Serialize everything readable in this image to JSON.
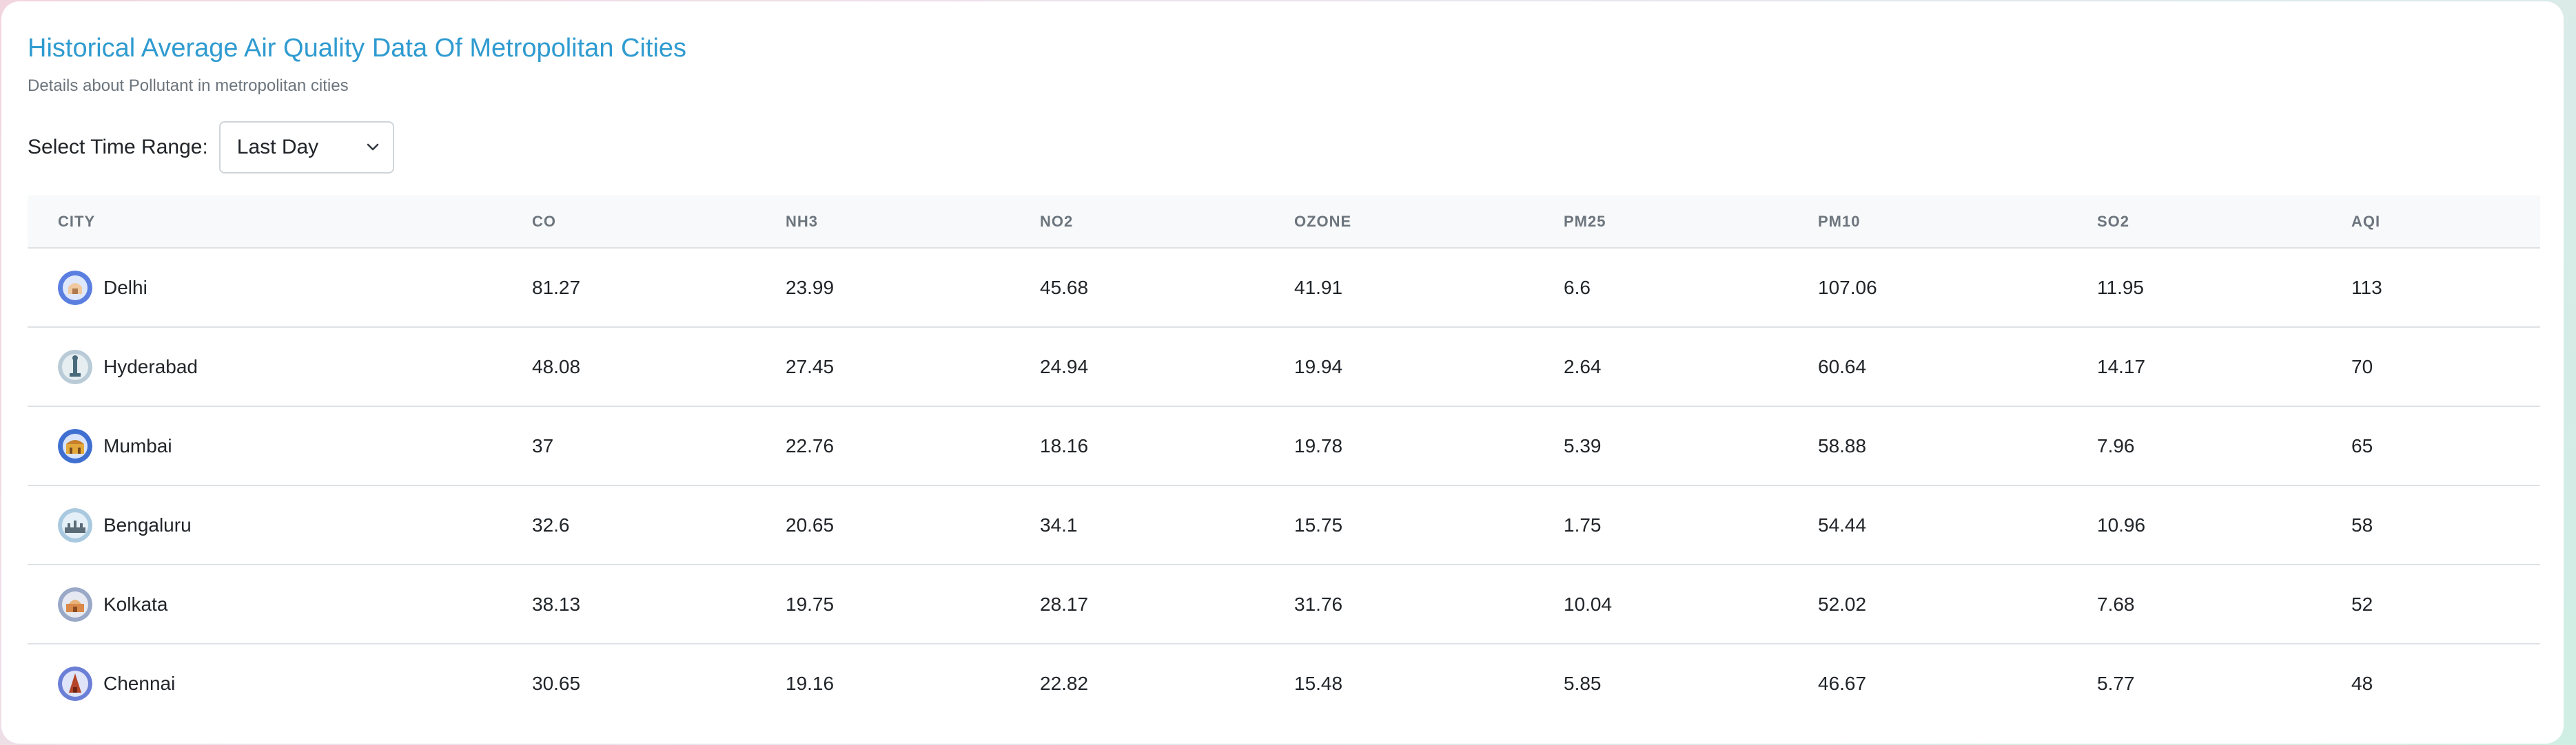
{
  "header": {
    "title": "Historical Average Air Quality Data Of Metropolitan Cities",
    "subtitle": "Details about Pollutant in metropolitan cities"
  },
  "filter": {
    "label": "Select Time Range:",
    "selected": "Last Day"
  },
  "table": {
    "columns": [
      "CITY",
      "CO",
      "NH3",
      "NO2",
      "OZONE",
      "PM25",
      "PM10",
      "SO2",
      "AQI"
    ],
    "rows": [
      {
        "city": "Delhi",
        "icon": "delhi-landmark-icon",
        "values": [
          "81.27",
          "23.99",
          "45.68",
          "41.91",
          "6.6",
          "107.06",
          "11.95",
          "113"
        ]
      },
      {
        "city": "Hyderabad",
        "icon": "hyderabad-landmark-icon",
        "values": [
          "48.08",
          "27.45",
          "24.94",
          "19.94",
          "2.64",
          "60.64",
          "14.17",
          "70"
        ]
      },
      {
        "city": "Mumbai",
        "icon": "mumbai-landmark-icon",
        "values": [
          "37",
          "22.76",
          "18.16",
          "19.78",
          "5.39",
          "58.88",
          "7.96",
          "65"
        ]
      },
      {
        "city": "Bengaluru",
        "icon": "bengaluru-landmark-icon",
        "values": [
          "32.6",
          "20.65",
          "34.1",
          "15.75",
          "1.75",
          "54.44",
          "10.96",
          "58"
        ]
      },
      {
        "city": "Kolkata",
        "icon": "kolkata-landmark-icon",
        "values": [
          "38.13",
          "19.75",
          "28.17",
          "31.76",
          "10.04",
          "52.02",
          "7.68",
          "52"
        ]
      },
      {
        "city": "Chennai",
        "icon": "chennai-landmark-icon",
        "values": [
          "30.65",
          "19.16",
          "22.82",
          "15.48",
          "5.85",
          "46.67",
          "5.77",
          "48"
        ]
      }
    ]
  },
  "colors": {
    "title": "#2f9bd0",
    "muted": "#6c757d",
    "border": "#dee2e6",
    "header_bg": "#f8f9fa"
  }
}
